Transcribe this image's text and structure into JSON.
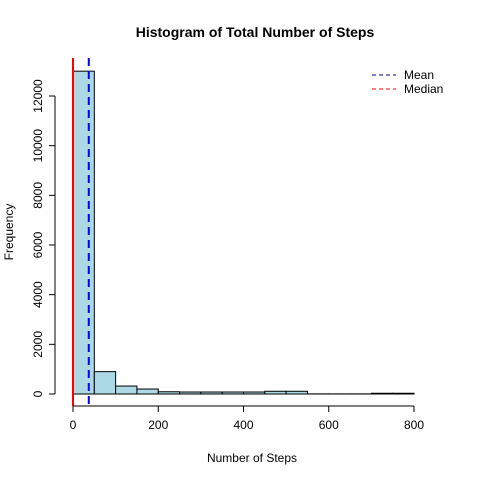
{
  "chart_data": {
    "type": "bar",
    "title": "Histogram of Total Number of Steps",
    "xlabel": "Number of Steps",
    "ylabel": "Frequency",
    "bin_width": 50,
    "bins": [
      {
        "x0": 0,
        "x1": 50,
        "count": 13000
      },
      {
        "x0": 50,
        "x1": 100,
        "count": 900
      },
      {
        "x0": 100,
        "x1": 150,
        "count": 320
      },
      {
        "x0": 150,
        "x1": 200,
        "count": 200
      },
      {
        "x0": 200,
        "x1": 250,
        "count": 90
      },
      {
        "x0": 250,
        "x1": 300,
        "count": 80
      },
      {
        "x0": 300,
        "x1": 350,
        "count": 80
      },
      {
        "x0": 350,
        "x1": 400,
        "count": 80
      },
      {
        "x0": 400,
        "x1": 450,
        "count": 80
      },
      {
        "x0": 450,
        "x1": 500,
        "count": 110
      },
      {
        "x0": 500,
        "x1": 550,
        "count": 110
      },
      {
        "x0": 550,
        "x1": 600,
        "count": 5
      },
      {
        "x0": 600,
        "x1": 650,
        "count": 5
      },
      {
        "x0": 650,
        "x1": 700,
        "count": 5
      },
      {
        "x0": 700,
        "x1": 750,
        "count": 30
      },
      {
        "x0": 750,
        "x1": 800,
        "count": 30
      }
    ],
    "xlim": [
      0,
      850
    ],
    "ylim": [
      0,
      13000
    ],
    "xticks": [
      0,
      200,
      400,
      600,
      800
    ],
    "yticks": [
      0,
      2000,
      4000,
      6000,
      8000,
      10000,
      12000
    ],
    "bar_fill": "#add8e6",
    "bar_stroke": "#000000",
    "mean": 37,
    "median": 0,
    "mean_color": "#0000ff",
    "median_color": "#ff0000",
    "legend": [
      {
        "label": "Mean",
        "color": "#00008b"
      },
      {
        "label": "Median",
        "color": "#ff0000"
      }
    ],
    "legend_position": "top-right",
    "grid": false
  }
}
